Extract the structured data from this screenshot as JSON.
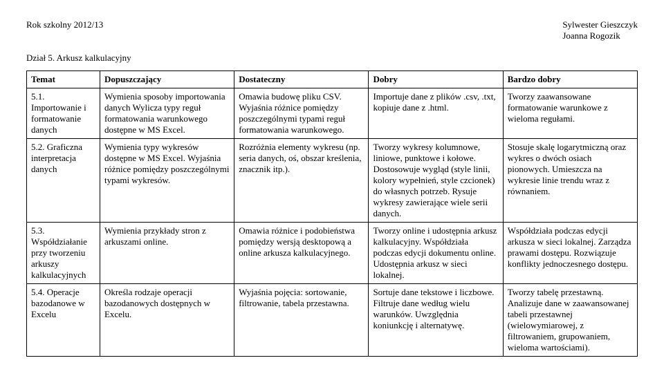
{
  "header": {
    "left": "Rok szkolny 2012/13",
    "right1": "Sylwester Gieszczyk",
    "right2": "Joanna Rogozik"
  },
  "section": "Dział 5. Arkusz kalkulacyjny",
  "cols": [
    "Temat",
    "Dopuszczający",
    "Dostateczny",
    "Dobry",
    "Bardzo dobry"
  ],
  "rows": [
    {
      "c0": "5.1. Importowanie i formatowanie danych",
      "c1": "Wymienia sposoby importowania danych Wylicza typy reguł formatowania warunkowego dostępne w MS Excel.",
      "c2": "Omawia budowę pliku CSV. Wyjaśnia różnice pomiędzy poszczególnymi typami reguł formatowania warunkowego.",
      "c3": "Importuje dane z plików .csv, .txt, kopiuje dane z .html.",
      "c4": "Tworzy zaawansowane formatowanie warunkowe z wieloma regułami."
    },
    {
      "c0": "5.2. Graficzna interpretacja danych",
      "c1": "Wymienia typy wykresów dostępne w MS Excel. Wyjaśnia różnice pomiędzy poszczególnymi typami wykresów.",
      "c2": "Rozróżnia elementy wykresu (np. seria danych, oś, obszar kreślenia, znacznik itp.).",
      "c3": "Tworzy wykresy kolumnowe, liniowe, punktowe i kołowe. Dostosowuje wygląd (style linii, kolory wypełnień, style czcionek) do własnych potrzeb. Rysuje wykresy zawierające wiele serii danych.",
      "c4": "Stosuje skalę logarytmiczną oraz wykres o dwóch osiach pionowych. Umieszcza na wykresie linie trendu wraz z równaniem."
    },
    {
      "c0": "5.3. Współdziałanie przy tworzeniu arkuszy kalkulacyjnych",
      "c1": "Wymienia przykłady stron z arkuszami online.",
      "c2": "Omawia różnice i podobieństwa pomiędzy wersją desktopową a online arkusza kalkulacyjnego.",
      "c3": "Tworzy online i udostępnia arkusz kalkulacyjny. Współdziała podczas edycji dokumentu online. Udostępnia arkusz w sieci lokalnej.",
      "c4": "Współdziała podczas edycji arkusza w sieci lokalnej. Zarządza prawami dostępu. Rozwiązuje konflikty jednoczesnego dostępu."
    },
    {
      "c0": "5.4. Operacje bazodanowe w Excelu",
      "c1": "Określa rodzaje operacji bazodanowych dostępnych w Excelu.",
      "c2": "Wyjaśnia pojęcia: sortowanie, filtrowanie, tabela przestawna.",
      "c3": "Sortuje dane tekstowe i liczbowe. Filtruje dane według wielu warunków. Uwzględnia koniunkcję i alternatywę.",
      "c4": "Tworzy tabelę przestawną. Analizuje dane w zaawansowanej tabeli przestawnej (wielowymiarowej, z filtrowaniem, grupowaniem, wieloma wartościami)."
    }
  ]
}
